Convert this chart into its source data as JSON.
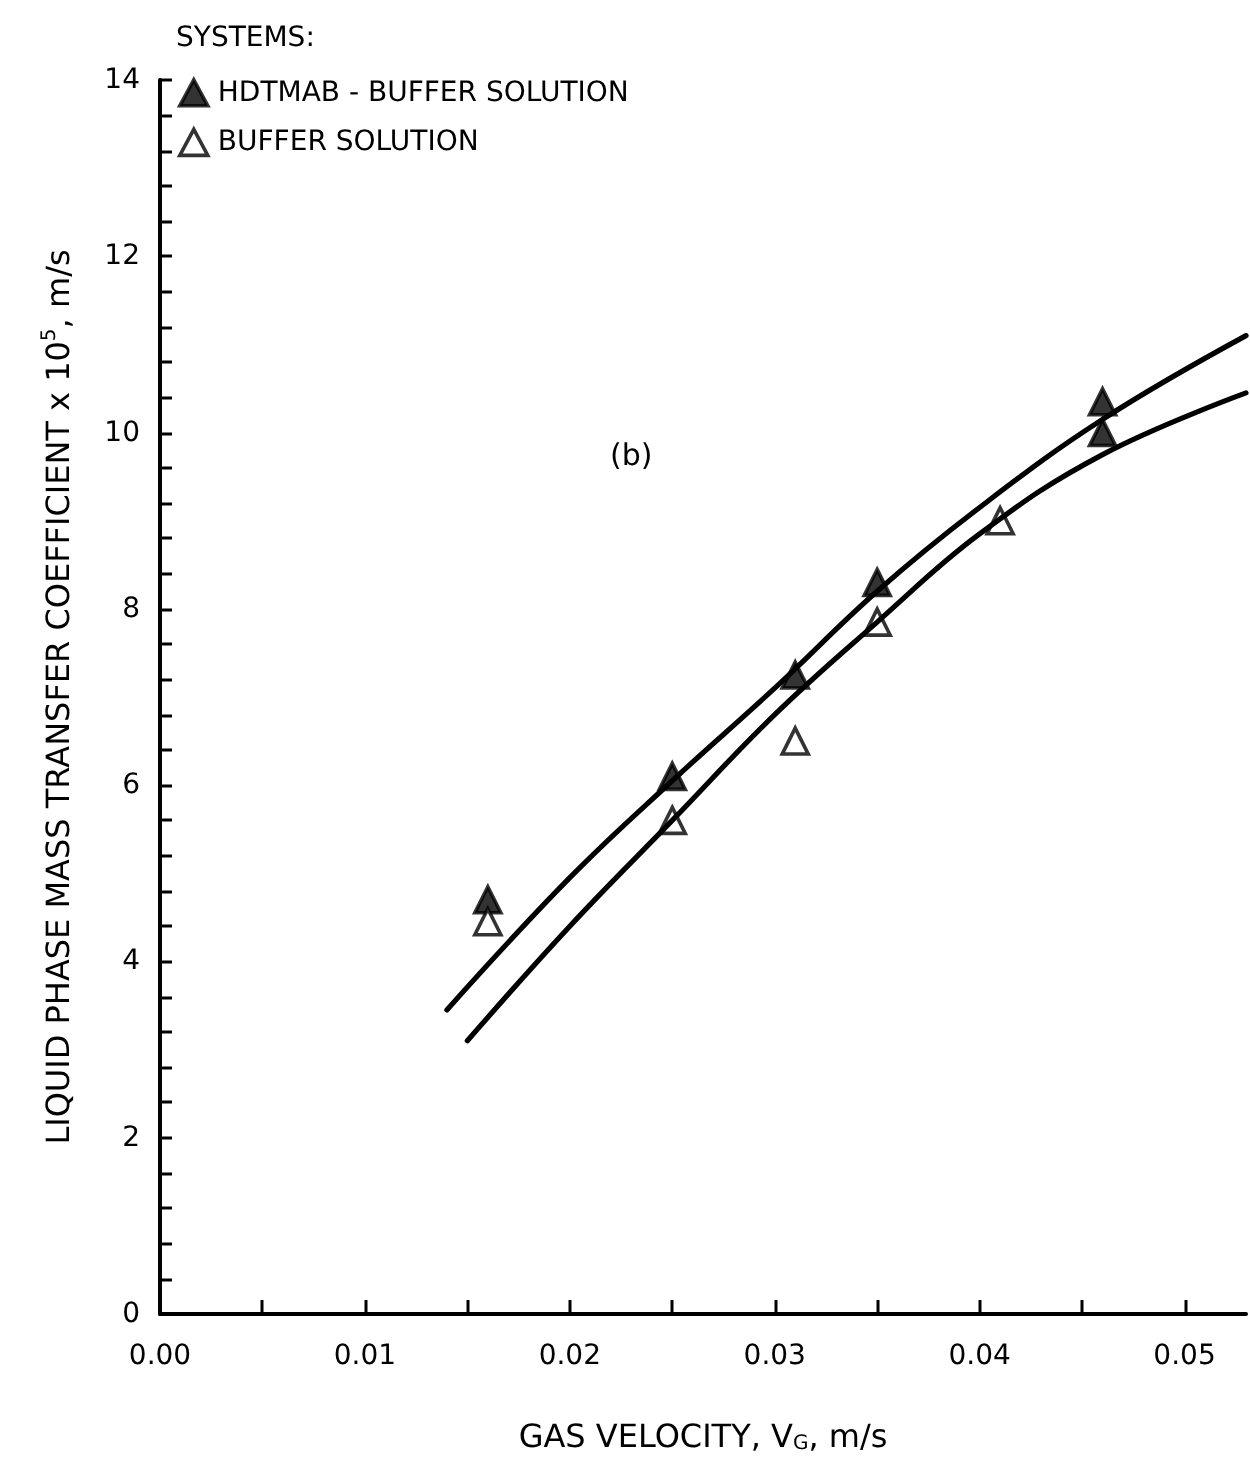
{
  "chart_data": {
    "type": "scatter",
    "xlabel": "GAS VELOCITY, V$_{G}$, m/s",
    "ylabel": "LIQUID PHASE MASS TRANSFER COEFFICIENT x 10$^{5}$, m/s",
    "legend_title": "SYSTEMS:",
    "annotations": [
      "(b)"
    ],
    "legend": "top left",
    "marker": "triangle",
    "grid": false,
    "xlim": [
      0,
      0.053
    ],
    "ylim": [
      0,
      14
    ],
    "xticks": [
      {
        "value": 0,
        "label": "0.00"
      },
      {
        "value": 0.005,
        "label": null
      },
      {
        "value": 0.01,
        "label": "0.01"
      },
      {
        "value": 0.015,
        "label": null
      },
      {
        "value": 0.02,
        "label": "0.02"
      },
      {
        "value": 0.025,
        "label": null
      },
      {
        "value": 0.03,
        "label": "0.03"
      },
      {
        "value": 0.035,
        "label": null
      },
      {
        "value": 0.04,
        "label": "0.04"
      },
      {
        "value": 0.045,
        "label": null
      },
      {
        "value": 0.05,
        "label": "0.05"
      }
    ],
    "yticks": [
      0,
      {
        "value": 0.4,
        "label": null
      },
      {
        "value": 0.8,
        "label": null
      },
      {
        "value": 1.2,
        "label": null
      },
      {
        "value": 1.6,
        "label": null
      },
      2,
      {
        "value": 2.4,
        "label": null
      },
      {
        "value": 2.8,
        "label": null
      },
      {
        "value": 3.2,
        "label": null
      },
      {
        "value": 3.6,
        "label": null
      },
      4,
      {
        "value": 4.4,
        "label": null
      },
      {
        "value": 4.8,
        "label": null
      },
      {
        "value": 5.2,
        "label": null
      },
      {
        "value": 5.6,
        "label": null
      },
      6,
      {
        "value": 6.4,
        "label": null
      },
      {
        "value": 6.8,
        "label": null
      },
      {
        "value": 7.2,
        "label": null
      },
      {
        "value": 7.6,
        "label": null
      },
      8,
      {
        "value": 8.4,
        "label": null
      },
      {
        "value": 8.8,
        "label": null
      },
      {
        "value": 9.2,
        "label": null
      },
      {
        "value": 9.6,
        "label": null
      },
      10,
      {
        "value": 10.4,
        "label": null
      },
      {
        "value": 10.8,
        "label": null
      },
      {
        "value": 11.2,
        "label": null
      },
      {
        "value": 11.6,
        "label": null
      },
      12,
      {
        "value": 12.4,
        "label": null
      },
      {
        "value": 12.8,
        "label": null
      },
      {
        "value": 13.2,
        "label": null
      },
      {
        "value": 13.6,
        "label": null
      },
      14
    ],
    "series": [
      {
        "name": "HDTMAB - BUFFER SOLUTION",
        "color": "#000000",
        "x": [
          0.016,
          0.025,
          0.031,
          0.035,
          0.046,
          0.046
        ],
        "values": [
          4.7,
          6.1,
          7.25,
          8.3,
          10.0,
          10.35
        ]
      },
      {
        "name": "BUFFER SOLUTION",
        "color": "#ffffff",
        "x": [
          0.016,
          0.025,
          0.031,
          0.035,
          0.041
        ],
        "values": [
          4.45,
          5.6,
          6.5,
          7.85,
          9.0
        ]
      },
      {
        "type": "line",
        "color": "#000000",
        "marker": "none",
        "x": [
          0.014,
          0.02,
          0.025,
          0.03,
          0.035,
          0.04,
          0.046,
          0.053
        ],
        "values": [
          3.45,
          4.95,
          6.05,
          7.1,
          8.2,
          9.15,
          10.15,
          11.1
        ]
      },
      {
        "type": "line",
        "color": "#000000",
        "marker": "none",
        "x": [
          0.015,
          0.02,
          0.025,
          0.03,
          0.035,
          0.04,
          0.046,
          0.053
        ],
        "values": [
          3.1,
          4.4,
          5.6,
          6.8,
          7.85,
          8.85,
          9.75,
          10.45
        ]
      }
    ]
  }
}
